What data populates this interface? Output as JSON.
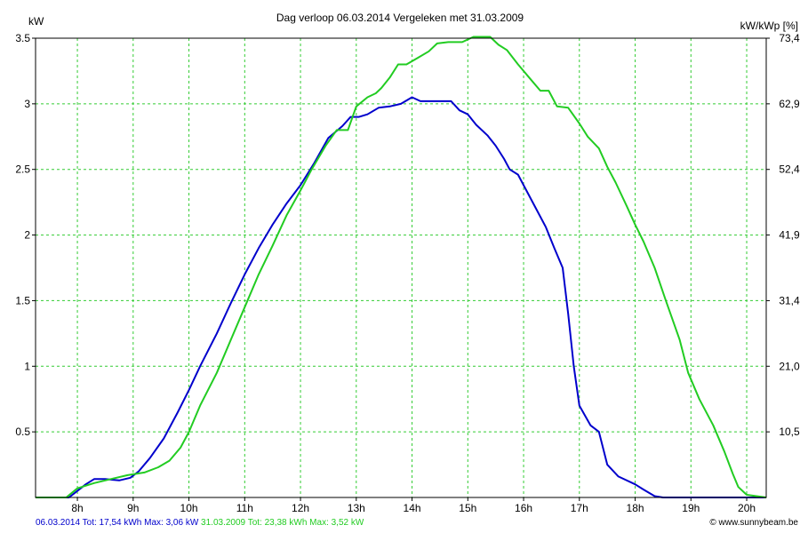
{
  "chart_data": {
    "type": "line",
    "title": "Dag  verloop 06.03.2014   Vergeleken met 31.03.2009",
    "ylabel_left": "kW",
    "ylabel_right": "kW/kWp [%]",
    "xlim": [
      7.25,
      20.35
    ],
    "ylim": [
      0,
      3.5
    ],
    "x_ticks": [
      {
        "v": 8,
        "label": "8h"
      },
      {
        "v": 9,
        "label": "9h"
      },
      {
        "v": 10,
        "label": "10h"
      },
      {
        "v": 11,
        "label": "11h"
      },
      {
        "v": 12,
        "label": "12h"
      },
      {
        "v": 13,
        "label": "13h"
      },
      {
        "v": 14,
        "label": "14h"
      },
      {
        "v": 15,
        "label": "15h"
      },
      {
        "v": 16,
        "label": "16h"
      },
      {
        "v": 17,
        "label": "17h"
      },
      {
        "v": 18,
        "label": "18h"
      },
      {
        "v": 19,
        "label": "19h"
      },
      {
        "v": 20,
        "label": "20h"
      }
    ],
    "y_ticks_left": [
      {
        "v": 0.5,
        "label": "0.5"
      },
      {
        "v": 1,
        "label": "1"
      },
      {
        "v": 1.5,
        "label": "1.5"
      },
      {
        "v": 2,
        "label": "2"
      },
      {
        "v": 2.5,
        "label": "2.5"
      },
      {
        "v": 3,
        "label": "3"
      },
      {
        "v": 3.5,
        "label": "3.5"
      }
    ],
    "y_ticks_right": [
      {
        "v": 0.5,
        "label": "10,5"
      },
      {
        "v": 1,
        "label": "21,0"
      },
      {
        "v": 1.5,
        "label": "31,4"
      },
      {
        "v": 2,
        "label": "41,9"
      },
      {
        "v": 2.5,
        "label": "52,4"
      },
      {
        "v": 3,
        "label": "62,9"
      },
      {
        "v": 3.5,
        "label": "73,4"
      }
    ],
    "grid": true,
    "series": [
      {
        "color": "#0000cc",
        "points": [
          [
            7.25,
            0
          ],
          [
            7.85,
            0
          ],
          [
            8.0,
            0.05
          ],
          [
            8.15,
            0.1
          ],
          [
            8.3,
            0.14
          ],
          [
            8.5,
            0.14
          ],
          [
            8.75,
            0.13
          ],
          [
            8.95,
            0.15
          ],
          [
            9.1,
            0.2
          ],
          [
            9.3,
            0.3
          ],
          [
            9.55,
            0.45
          ],
          [
            9.8,
            0.65
          ],
          [
            10.0,
            0.82
          ],
          [
            10.2,
            1.0
          ],
          [
            10.5,
            1.25
          ],
          [
            10.75,
            1.48
          ],
          [
            11.0,
            1.7
          ],
          [
            11.25,
            1.9
          ],
          [
            11.5,
            2.08
          ],
          [
            11.75,
            2.24
          ],
          [
            12.0,
            2.38
          ],
          [
            12.25,
            2.55
          ],
          [
            12.5,
            2.74
          ],
          [
            12.75,
            2.83
          ],
          [
            12.9,
            2.9
          ],
          [
            13.05,
            2.9
          ],
          [
            13.2,
            2.92
          ],
          [
            13.4,
            2.97
          ],
          [
            13.6,
            2.98
          ],
          [
            13.8,
            3.0
          ],
          [
            14.0,
            3.05
          ],
          [
            14.15,
            3.02
          ],
          [
            14.4,
            3.02
          ],
          [
            14.7,
            3.02
          ],
          [
            14.85,
            2.95
          ],
          [
            15.0,
            2.92
          ],
          [
            15.15,
            2.84
          ],
          [
            15.35,
            2.76
          ],
          [
            15.5,
            2.68
          ],
          [
            15.65,
            2.58
          ],
          [
            15.75,
            2.5
          ],
          [
            15.9,
            2.46
          ],
          [
            16.0,
            2.38
          ],
          [
            16.2,
            2.22
          ],
          [
            16.4,
            2.06
          ],
          [
            16.55,
            1.9
          ],
          [
            16.7,
            1.75
          ],
          [
            16.8,
            1.4
          ],
          [
            16.9,
            1.0
          ],
          [
            17.0,
            0.7
          ],
          [
            17.2,
            0.55
          ],
          [
            17.35,
            0.5
          ],
          [
            17.5,
            0.25
          ],
          [
            17.7,
            0.16
          ],
          [
            18.0,
            0.1
          ],
          [
            18.15,
            0.06
          ],
          [
            18.35,
            0.01
          ],
          [
            18.5,
            0
          ],
          [
            20.35,
            0
          ]
        ]
      },
      {
        "color": "#22cc22",
        "points": [
          [
            7.25,
            0
          ],
          [
            7.8,
            0
          ],
          [
            8.0,
            0.07
          ],
          [
            8.3,
            0.11
          ],
          [
            8.6,
            0.14
          ],
          [
            8.9,
            0.17
          ],
          [
            9.2,
            0.19
          ],
          [
            9.45,
            0.23
          ],
          [
            9.65,
            0.28
          ],
          [
            9.85,
            0.38
          ],
          [
            10.0,
            0.5
          ],
          [
            10.2,
            0.7
          ],
          [
            10.5,
            0.95
          ],
          [
            10.75,
            1.2
          ],
          [
            11.0,
            1.45
          ],
          [
            11.25,
            1.7
          ],
          [
            11.5,
            1.92
          ],
          [
            11.75,
            2.15
          ],
          [
            12.0,
            2.34
          ],
          [
            12.2,
            2.5
          ],
          [
            12.45,
            2.68
          ],
          [
            12.65,
            2.8
          ],
          [
            12.85,
            2.8
          ],
          [
            13.0,
            2.98
          ],
          [
            13.2,
            3.05
          ],
          [
            13.35,
            3.08
          ],
          [
            13.45,
            3.12
          ],
          [
            13.6,
            3.2
          ],
          [
            13.75,
            3.3
          ],
          [
            13.9,
            3.3
          ],
          [
            14.1,
            3.35
          ],
          [
            14.3,
            3.4
          ],
          [
            14.45,
            3.46
          ],
          [
            14.65,
            3.47
          ],
          [
            14.9,
            3.47
          ],
          [
            15.1,
            3.51
          ],
          [
            15.4,
            3.51
          ],
          [
            15.55,
            3.45
          ],
          [
            15.7,
            3.41
          ],
          [
            15.9,
            3.3
          ],
          [
            16.1,
            3.2
          ],
          [
            16.3,
            3.1
          ],
          [
            16.45,
            3.1
          ],
          [
            16.6,
            2.98
          ],
          [
            16.8,
            2.97
          ],
          [
            17.0,
            2.85
          ],
          [
            17.15,
            2.75
          ],
          [
            17.35,
            2.66
          ],
          [
            17.5,
            2.52
          ],
          [
            17.65,
            2.4
          ],
          [
            17.85,
            2.22
          ],
          [
            18.0,
            2.08
          ],
          [
            18.15,
            1.95
          ],
          [
            18.35,
            1.75
          ],
          [
            18.55,
            1.5
          ],
          [
            18.8,
            1.2
          ],
          [
            18.95,
            0.95
          ],
          [
            19.15,
            0.75
          ],
          [
            19.4,
            0.55
          ],
          [
            19.6,
            0.35
          ],
          [
            19.75,
            0.18
          ],
          [
            19.85,
            0.08
          ],
          [
            20.0,
            0.02
          ],
          [
            20.35,
            0
          ]
        ]
      }
    ],
    "legend_text": [
      {
        "text": "06.03.2014 Tot: 17,54 kWh Max: 3,06 kW",
        "color": "#0000cc"
      },
      {
        "text": "31.03.2009 Tot: 23,38 kWh Max: 3,52 kW",
        "color": "#22cc22"
      }
    ],
    "credit": "© www.sunnybeam.be"
  }
}
